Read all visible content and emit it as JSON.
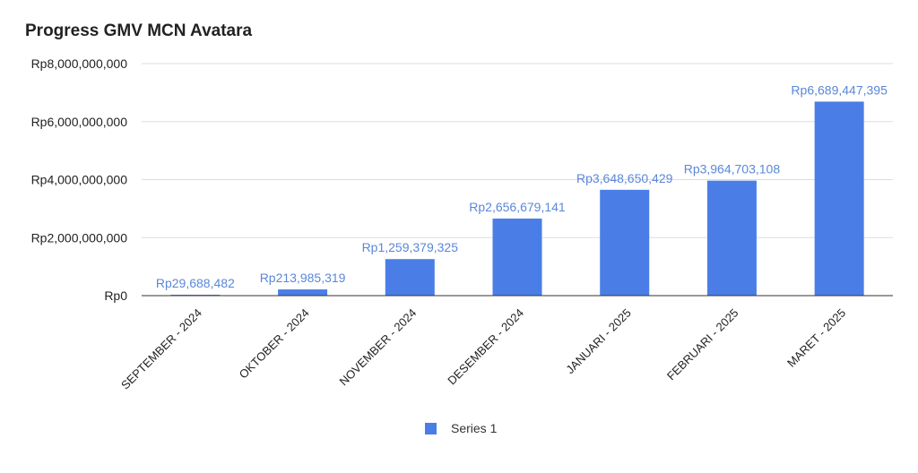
{
  "chart_data": {
    "type": "bar",
    "title": "Progress GMV MCN Avatara",
    "categories": [
      "SEPTEMBER - 2024",
      "OKTOBER - 2024",
      "NOVEMBER - 2024",
      "DESEMBER - 2024",
      "JANUARI - 2025",
      "FEBRUARI - 2025",
      "MARET - 2025"
    ],
    "series": [
      {
        "name": "Series 1",
        "values": [
          29688482,
          213985319,
          1259379325,
          2656679141,
          3648650429,
          3964703108,
          6689447395
        ],
        "labels": [
          "Rp29,688,482",
          "Rp213,985,319",
          "Rp1,259,379,325",
          "Rp2,656,679,141",
          "Rp3,648,650,429",
          "Rp3,964,703,108",
          "Rp6,689,447,395"
        ]
      }
    ],
    "yticks": [
      "Rp0",
      "Rp2,000,000,000",
      "Rp4,000,000,000",
      "Rp6,000,000,000",
      "Rp8,000,000,000"
    ],
    "ytick_values": [
      0,
      2000000000,
      4000000000,
      6000000000,
      8000000000
    ],
    "ylim": [
      0,
      8000000000
    ],
    "xlabel": "",
    "ylabel": "",
    "grid": true,
    "legend_position": "bottom",
    "colors": {
      "bar": "#4a7ee6",
      "label": "#5b87d9",
      "grid": "#dddddd",
      "axis": "#333333"
    }
  }
}
